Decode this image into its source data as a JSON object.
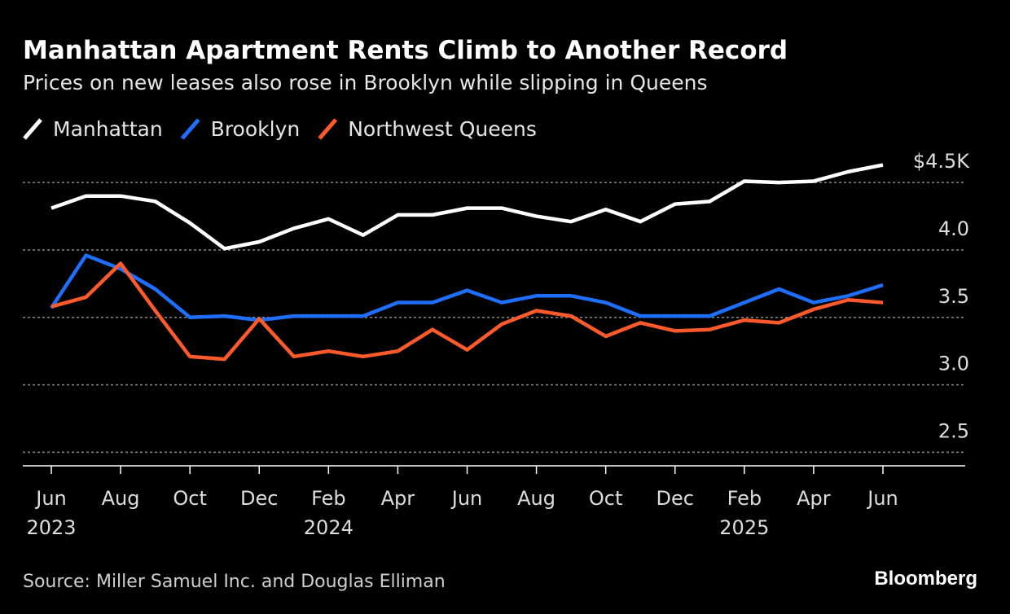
{
  "chart_data": {
    "type": "line",
    "title": "Manhattan Apartment Rents Climb to Another Record",
    "subtitle": "Prices on new leases also rose in Brooklyn while slipping in Queens",
    "source": "Source: Miller Samuel Inc. and Douglas Elliman",
    "brand": "Bloomberg",
    "categories": [
      "Jun",
      null,
      "Aug",
      null,
      "Oct",
      null,
      "Dec",
      null,
      "Feb",
      null,
      "Apr",
      null,
      "Jun",
      null,
      "Aug",
      null,
      "Oct",
      null,
      "Dec",
      null,
      "Feb",
      null,
      "Apr",
      null,
      "Jun"
    ],
    "years": [
      "2023",
      null,
      null,
      null,
      null,
      null,
      null,
      null,
      "2024",
      null,
      null,
      null,
      null,
      null,
      null,
      null,
      null,
      null,
      null,
      null,
      "2025",
      null,
      null,
      null,
      null
    ],
    "series": [
      {
        "name": "Manhattan",
        "color": "#ffffff",
        "values": [
          4.31,
          4.4,
          4.4,
          4.36,
          4.2,
          4.01,
          4.06,
          4.16,
          4.23,
          4.11,
          4.26,
          4.26,
          4.31,
          4.31,
          4.25,
          4.21,
          4.3,
          4.21,
          4.34,
          4.36,
          4.51,
          4.5,
          4.51,
          4.58,
          4.63
        ]
      },
      {
        "name": "Brooklyn",
        "color": "#1f6fff",
        "values": [
          3.57,
          3.96,
          3.86,
          3.71,
          3.5,
          3.51,
          3.48,
          3.51,
          3.51,
          3.51,
          3.61,
          3.61,
          3.7,
          3.61,
          3.66,
          3.66,
          3.61,
          3.51,
          3.51,
          3.51,
          3.61,
          3.71,
          3.61,
          3.66,
          3.74
        ]
      },
      {
        "name": "Northwest Queens",
        "color": "#ff5a2c",
        "values": [
          3.58,
          3.65,
          3.9,
          3.55,
          3.21,
          3.19,
          3.49,
          3.21,
          3.25,
          3.21,
          3.25,
          3.41,
          3.26,
          3.45,
          3.55,
          3.51,
          3.36,
          3.46,
          3.4,
          3.41,
          3.48,
          3.46,
          3.56,
          3.63,
          3.61
        ]
      }
    ],
    "ylim": [
      2.4,
      4.7
    ],
    "yticks": [
      2.5,
      {
        "value": 3,
        "label": "3.0"
      },
      3.5,
      {
        "value": 4,
        "label": "4.0"
      },
      {
        "value": 4.5,
        "label": "$4.5K"
      }
    ],
    "grid": true
  }
}
